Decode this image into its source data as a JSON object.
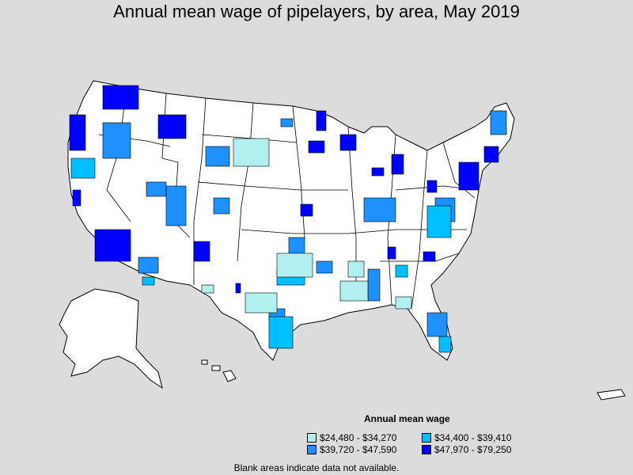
{
  "title": "Annual mean wage of pipelayers, by area, May 2019",
  "legend": {
    "title": "Annual mean wage",
    "items": [
      {
        "label": "$24,480 - $34,270",
        "color": "#b2f0f0"
      },
      {
        "label": "$34,400 - $39,410",
        "color": "#00bfff"
      },
      {
        "label": "$39,720 - $47,590",
        "color": "#1e90ff"
      },
      {
        "label": "$47,970 - $79,250",
        "color": "#0000ff"
      }
    ]
  },
  "footnote": "Blank areas indicate data not available.",
  "colors": {
    "background": "#dcdcdc",
    "land": "#ffffff",
    "border": "#000000"
  }
}
